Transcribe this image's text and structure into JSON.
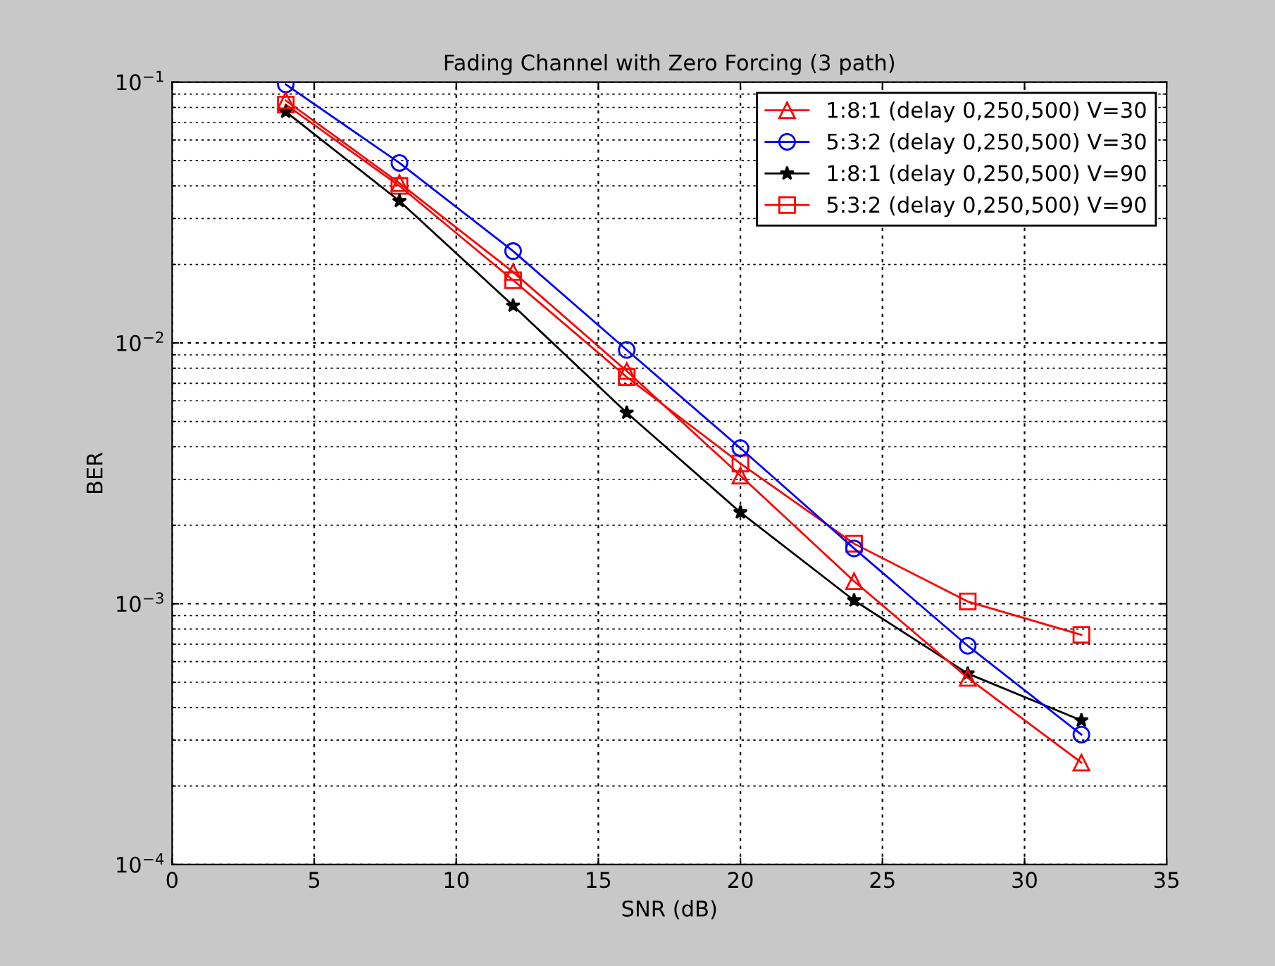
{
  "chart_data": {
    "type": "line",
    "title": "Fading Channel with Zero Forcing (3 path)",
    "xlabel": "SNR (dB)",
    "ylabel": "BER",
    "x": [
      4,
      8,
      12,
      16,
      20,
      24,
      28,
      32
    ],
    "series": [
      {
        "name": "1:8:1 (delay 0,250,500) V=30",
        "color": "#ff0000",
        "marker": "triangle",
        "values": [
          0.085,
          0.041,
          0.0187,
          0.0078,
          0.0031,
          0.00122,
          0.00052,
          0.000246
        ]
      },
      {
        "name": "5:3:2 (delay 0,250,500) V=30",
        "color": "#0000ff",
        "marker": "circle",
        "values": [
          0.098,
          0.049,
          0.0225,
          0.0094,
          0.00395,
          0.00163,
          0.00069,
          0.000315
        ]
      },
      {
        "name": "1:8:1 (delay 0,250,500) V=90",
        "color": "#000000",
        "marker": "star",
        "values": [
          0.077,
          0.035,
          0.0139,
          0.0054,
          0.00224,
          0.00103,
          0.00054,
          0.000357
        ]
      },
      {
        "name": "5:3:2 (delay 0,250,500) V=90",
        "color": "#ff0000",
        "marker": "square",
        "values": [
          0.082,
          0.04,
          0.0174,
          0.0074,
          0.00345,
          0.0017,
          0.00102,
          0.00076
        ]
      }
    ],
    "log": "y",
    "xlim": [
      0,
      35
    ],
    "xticks": [
      0,
      5,
      10,
      15,
      20,
      25,
      30,
      35
    ],
    "ylim": [
      0.0001,
      0.1
    ],
    "yticks": [
      {
        "value": 0.0001,
        "label": "10$^{−4}$"
      },
      {
        "value": 0.001,
        "label": "10$^{−3}$"
      },
      {
        "value": 0.01,
        "label": "10$^{−2}$"
      },
      {
        "value": 0.1,
        "label": "10$^{−1}$"
      }
    ],
    "grid": true,
    "legend": "top right",
    "line_style": "solid"
  }
}
